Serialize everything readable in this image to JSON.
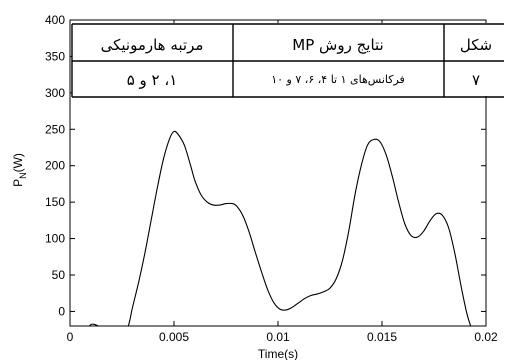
{
  "chart_data": {
    "type": "line",
    "title": "",
    "xlabel": "Time(s)",
    "ylabel": {
      "base": "P",
      "sub": "N",
      "suffix": "(W)"
    },
    "xlim": [
      0,
      0.02
    ],
    "ylim": [
      -20,
      400
    ],
    "x_ticks": [
      0,
      0.005,
      0.01,
      0.015,
      0.02
    ],
    "x_tick_labels": [
      "0",
      "0.005",
      "0.01",
      "0.015",
      "0.02"
    ],
    "y_ticks": [
      0,
      50,
      100,
      150,
      200,
      250,
      300,
      350,
      400
    ],
    "y_tick_labels": [
      "0",
      "50",
      "100",
      "150",
      "200",
      "250",
      "300",
      "350",
      "400"
    ],
    "grid": false,
    "series": [
      {
        "x": [
          0.0,
          0.0005,
          0.0008,
          0.001,
          0.0012,
          0.0015,
          0.002,
          0.0025,
          0.0028,
          0.003,
          0.0033,
          0.0036,
          0.0039,
          0.0042,
          0.0045,
          0.0048,
          0.005,
          0.0052,
          0.0055,
          0.0058,
          0.006,
          0.0063,
          0.0066,
          0.0069,
          0.0072,
          0.0075,
          0.0078,
          0.008,
          0.0083,
          0.0086,
          0.0089,
          0.0092,
          0.0095,
          0.0098,
          0.0101,
          0.0104,
          0.0107,
          0.011,
          0.0113,
          0.0116,
          0.0119,
          0.0122,
          0.0125,
          0.0128,
          0.0131,
          0.0134,
          0.0137,
          0.014,
          0.0143,
          0.0146,
          0.0149,
          0.0152,
          0.0155,
          0.0158,
          0.0161,
          0.0164,
          0.0167,
          0.017,
          0.0173,
          0.0176,
          0.0179,
          0.0182,
          0.0185,
          0.0188,
          0.0191,
          0.0194,
          0.0197,
          0.02
        ],
        "values": [
          -30,
          -30,
          -25,
          -18,
          -18,
          -22,
          -28,
          -30,
          -20,
          5,
          40,
          80,
          125,
          170,
          210,
          238,
          247,
          243,
          228,
          200,
          180,
          160,
          150,
          146,
          146,
          148,
          148,
          145,
          132,
          110,
          82,
          55,
          30,
          12,
          3,
          2,
          6,
          12,
          18,
          22,
          24,
          27,
          32,
          45,
          70,
          110,
          160,
          200,
          228,
          236,
          233,
          215,
          185,
          150,
          120,
          104,
          102,
          110,
          124,
          134,
          132,
          115,
          80,
          35,
          -5,
          -30,
          -45,
          -50
        ]
      }
    ]
  },
  "overlay_table": {
    "headers": [
      "مرتبه هارمونیکی",
      "نتایج روش MP",
      "شکل"
    ],
    "row": [
      "۱، ۲ و ۵",
      "فرکانس‌های ۱ تا ۴، ۶، ۷ و ۱۰",
      "۷"
    ]
  }
}
